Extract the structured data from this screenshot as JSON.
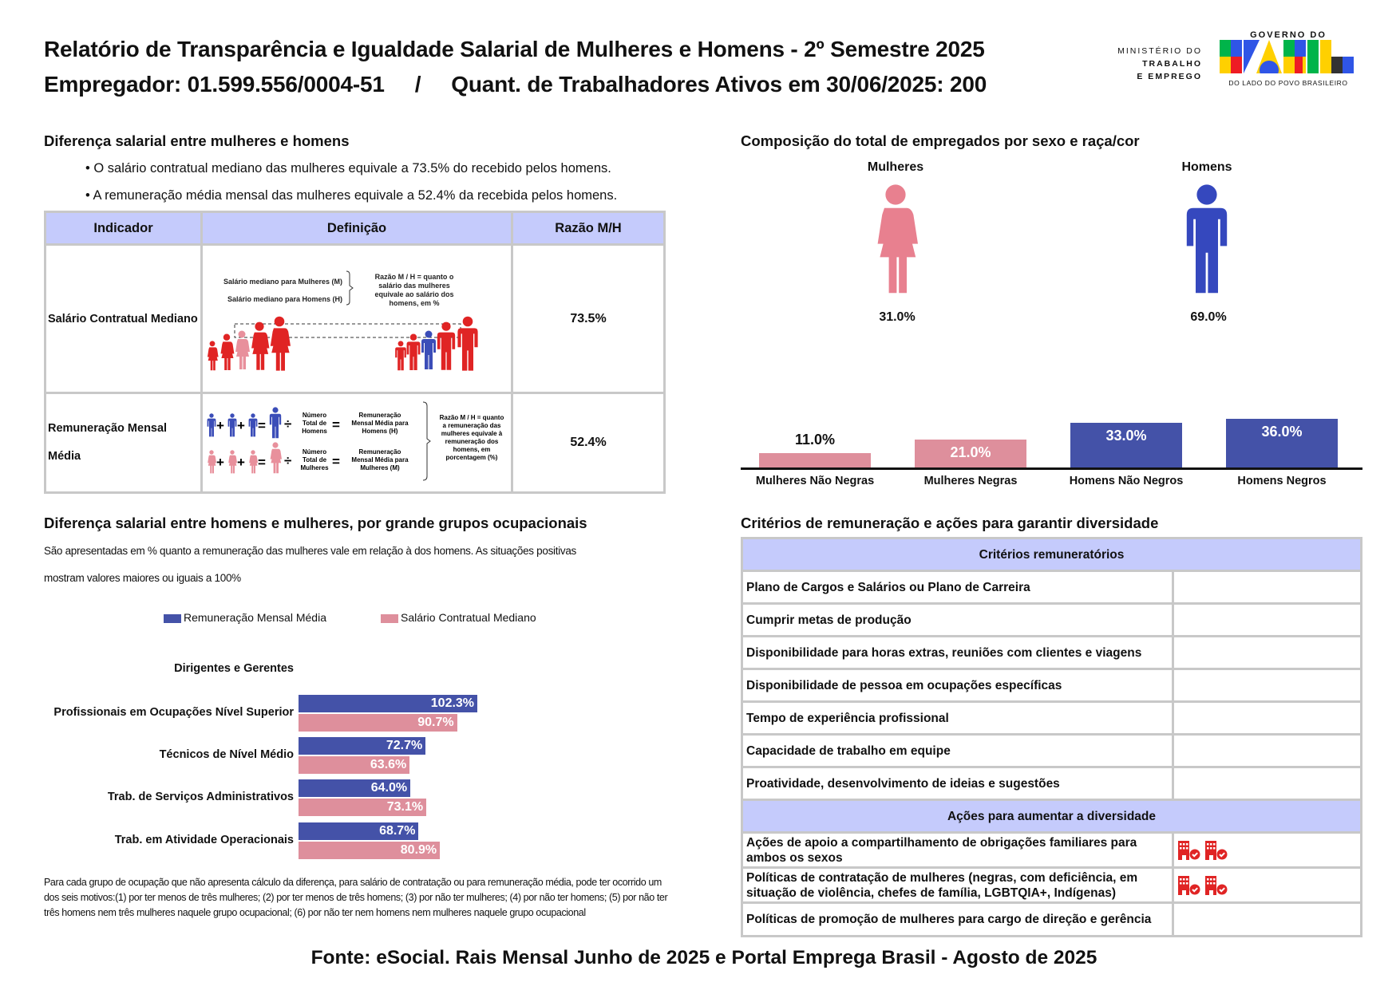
{
  "header": {
    "title": "Relatório de Transparência e Igualdade Salarial de Mulheres e Homens - 2º Semestre 2025",
    "employer": "Empregador: 01.599.556/0004-51",
    "sep": "/",
    "workers": "Quant. de Trabalhadores Ativos em 30/06/2025: 200"
  },
  "logo": {
    "ministry": [
      "MINISTÉRIO DO",
      "TRABALHO",
      "E EMPREGO"
    ],
    "gov": "GOVERNO DO",
    "brasil": "BRASIL",
    "slogan": "DO LADO DO POVO BRASILEIRO"
  },
  "diff": {
    "title": "Diferença salarial entre mulheres e homens",
    "bullets": [
      "• O salário contratual mediano das mulheres equivale a 73.5% do recebido pelos homens.",
      "• A remuneração média mensal das mulheres equivale a 52.4% da recebida pelos homens."
    ],
    "headers": [
      "Indicador",
      "Definição",
      "Razão M/H"
    ],
    "rows": [
      {
        "indicator": "Salário Contratual Mediano",
        "ratio": "73.5%"
      },
      {
        "indicator": "Remuneração Mensal",
        "indicator2": "Média",
        "ratio": "52.4%"
      }
    ],
    "def1": {
      "w": "Salário mediano para Mulheres (M)",
      "m": "Salário mediano para Homens (H)",
      "r": [
        "Razão M / H = quanto o",
        "salário das mulheres",
        "equivale ao salário dos",
        "homens, em %"
      ]
    },
    "def2": {
      "n1": [
        "Número",
        "Total de",
        "Homens"
      ],
      "r1": [
        "Remuneração",
        "Mensal Média para",
        "Homens (H)"
      ],
      "n2": [
        "Número",
        "Total de",
        "Mulheres"
      ],
      "r2": [
        "Remuneração",
        "Mensal Média para",
        "Mulheres (M)"
      ],
      "r": [
        "Razão M / H = quanto",
        "a remuneração das",
        "mulheres equivale à",
        "remuneração dos",
        "homens, em",
        "porcentagem (%)"
      ]
    }
  },
  "comp": {
    "title": "Composição do total de empregados por sexo e raça/cor",
    "women_label": "Mulheres",
    "men_label": "Homens",
    "women_pct": "31.0%",
    "men_pct": "69.0%",
    "chart_data": {
      "type": "bar",
      "categories": [
        "Mulheres Não Negras",
        "Mulheres Negras",
        "Homens Não Negros",
        "Homens Negros"
      ],
      "values": [
        11.0,
        21.0,
        33.0,
        36.0
      ],
      "labels": [
        "11.0%",
        "21.0%",
        "33.0%",
        "36.0%"
      ],
      "colors": [
        "#de8f9c",
        "#de8f9c",
        "#4452a8",
        "#4452a8"
      ],
      "ylim": [
        0,
        40
      ]
    }
  },
  "occ": {
    "title": "Diferença salarial entre homens e mulheres, por grande grupos ocupacionais",
    "desc1": "São apresentadas em % quanto a remuneração das mulheres vale em relação à dos homens. As situações positivas",
    "desc2": "mostram valores maiores ou iguais a 100%",
    "chart_data": {
      "type": "bar",
      "orientation": "horizontal",
      "categories": [
        "Dirigentes e Gerentes",
        "Profissionais em Ocupações Nível Superior",
        "Técnicos de Nível Médio",
        "Trab. de Serviços Administrativos",
        "Trab. em Atividade Operacionais"
      ],
      "series": [
        {
          "name": "Remuneração Mensal Média",
          "color": "#4452a8",
          "values": [
            null,
            102.3,
            72.7,
            64.0,
            68.7
          ],
          "labels": [
            "",
            "102.3%",
            "72.7%",
            "64.0%",
            "68.7%"
          ]
        },
        {
          "name": "Salário Contratual Mediano",
          "color": "#de8f9c",
          "values": [
            null,
            90.7,
            63.6,
            73.1,
            80.9
          ],
          "labels": [
            "",
            "90.7%",
            "63.6%",
            "73.1%",
            "80.9%"
          ]
        }
      ],
      "legend": "top"
    },
    "note": "Para cada grupo de ocupação que não apresenta cálculo da diferença, para salário de contratação ou para remuneração média, pode ter ocorrido um dos seis motivos:(1) por ter menos de três mulheres; (2) por ter menos de três homens; (3) por não ter mulheres; (4) por não ter homens; (5) por não ter três homens nem três mulheres naquele grupo ocupacional; (6) por não ter nem homens nem mulheres naquele grupo ocupacional"
  },
  "crit": {
    "title": "Critérios de remuneração e ações para garantir diversidade",
    "h1": "Critérios remuneratórios",
    "items": [
      "Plano de Cargos e Salários ou Plano de Carreira",
      "Cumprir metas de produção",
      "Disponibilidade para horas extras, reuniões com clientes e viagens",
      "Disponibilidade de pessoa em ocupações específicas",
      "Tempo de experiência profissional",
      "Capacidade de trabalho em equipe",
      "Proatividade, desenvolvimento de ideias e sugestões"
    ],
    "h2": "Ações para aumentar a diversidade",
    "actions": [
      {
        "label": "Ações de apoio a compartilhamento de obrigações familiares para ambos os sexos",
        "icon": "company-check-icon"
      },
      {
        "label": "Políticas de contratação de mulheres (negras, com deficiência, em situação de violência, chefes de família, LGBTQIA+, Indígenas)",
        "icon": "company-check-icon"
      },
      {
        "label": "Políticas de promoção de mulheres para cargo de direção e gerência",
        "icon": ""
      }
    ]
  },
  "footer": "Fonte: eSocial. Rais Mensal Junho de 2025 e Portal Emprega Brasil - Agosto de 2025"
}
